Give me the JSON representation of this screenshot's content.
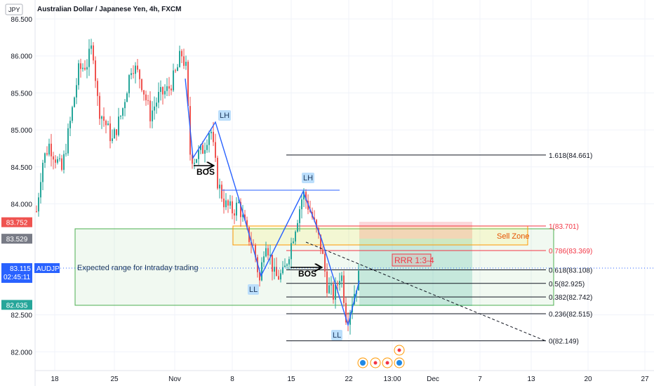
{
  "symbol_badge": "JPY",
  "header": {
    "title": "Australian Dollar / Japanese Yen, 4h, FXCM"
  },
  "chart_data": {
    "type": "candlestick",
    "title": "Australian Dollar / Japanese Yen, 4h, FXCM",
    "y_axis": {
      "ticks": [
        "86.500",
        "86.000",
        "85.500",
        "85.000",
        "84.500",
        "84.000",
        "82.500",
        "82.000"
      ],
      "range": [
        81.6,
        86.65
      ]
    },
    "x_axis": {
      "ticks": [
        "18",
        "25",
        "Nov",
        "8",
        "15",
        "22",
        "13:00",
        "Dec",
        "7",
        "13",
        "20",
        "27"
      ]
    },
    "price_tags": [
      {
        "text": "83.752",
        "value": 83.752,
        "color": "#ef5350"
      },
      {
        "text": "83.529",
        "value": 83.529,
        "color": "#787b86"
      },
      {
        "text": "82.635",
        "value": 82.635,
        "color": "#26a69a"
      }
    ],
    "current": {
      "symbol": "AUDJPY",
      "price": "83.115",
      "countdown": "02:45:11",
      "value": 83.115,
      "color": "#2962ff"
    },
    "fib_levels": [
      {
        "label": "1.618(84.661)",
        "value": 84.661,
        "color": "#131722"
      },
      {
        "label": "1(83.701)",
        "value": 83.701,
        "color": "#f23645"
      },
      {
        "label": "0.786(83.369)",
        "value": 83.369,
        "color": "#f23645"
      },
      {
        "label": "0.618(83.108)",
        "value": 83.108,
        "color": "#131722"
      },
      {
        "label": "0.5(82.925)",
        "value": 82.925,
        "color": "#131722"
      },
      {
        "label": "0.382(82.742)",
        "value": 82.742,
        "color": "#131722"
      },
      {
        "label": "0.236(82.515)",
        "value": 82.515,
        "color": "#131722"
      },
      {
        "label": "0(82.149)",
        "value": 82.149,
        "color": "#131722"
      }
    ],
    "annotations": {
      "range_label": "Expected range for Intraday trading",
      "sell_zone": "Sell Zone",
      "rrr": "RRR 1:3-4",
      "bos1": "BOS",
      "bos2": "BOS",
      "lh1": "LH",
      "lh2": "LH",
      "ll1": "LL",
      "ll2": "LL"
    },
    "colors": {
      "up": "#26a69a",
      "down": "#ef5350",
      "structure": "#2962ff",
      "range_box": "#4caf50",
      "sell_zone": "#ff9800"
    }
  }
}
